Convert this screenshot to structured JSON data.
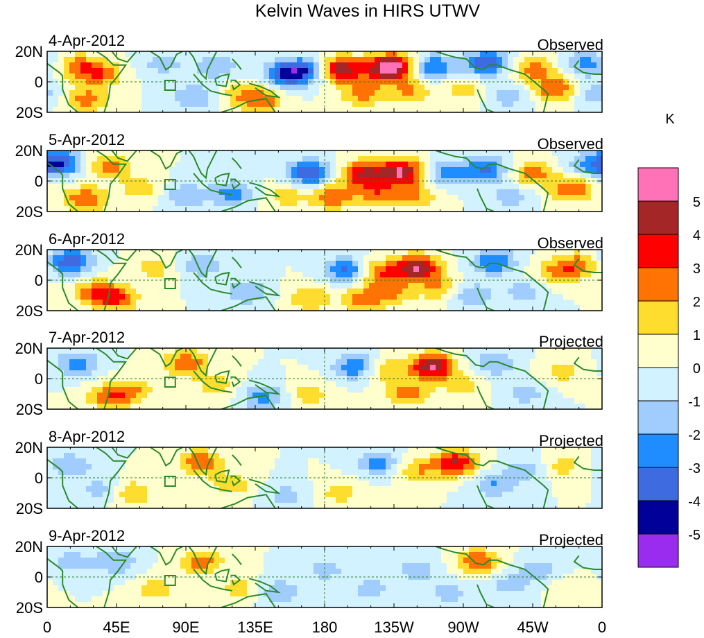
{
  "figure": {
    "title": "Kelvin Waves in HIRS UTWV"
  },
  "chart_data": {
    "type": "heatmap",
    "title": "Kelvin Waves in HIRS UTWV",
    "colorbar": {
      "unit": "K",
      "colors": [
        "#9a2cef",
        "#01019a",
        "#3f6be0",
        "#1f8dff",
        "#a0ccfe",
        "#d3f2ff",
        "#ffffce",
        "#fedd2e",
        "#ff7204",
        "#ff0000",
        "#a52626",
        "#ff72b7"
      ],
      "labels": [
        "-5",
        "-4",
        "-3",
        "-2",
        "-1",
        "0",
        "1",
        "2",
        "3",
        "4",
        "5"
      ]
    },
    "x_ticks": [
      "0",
      "45E",
      "90E",
      "135E",
      "180",
      "135W",
      "90W",
      "45W",
      "0"
    ],
    "y_ticks": [
      "20N",
      "0",
      "20S"
    ],
    "x_range_deg_east": [
      0,
      360
    ],
    "y_range_deg": [
      -20,
      20
    ],
    "panels": [
      {
        "date": "4-Apr-2012",
        "label": "Observed",
        "blobs": [
          [
            20,
            10,
            2.5
          ],
          [
            35,
            5,
            2.5
          ],
          [
            25,
            -12,
            2.5
          ],
          [
            75,
            12,
            -1.5
          ],
          [
            95,
            -10,
            -2
          ],
          [
            110,
            10,
            -2
          ],
          [
            125,
            -8,
            1.5
          ],
          [
            140,
            -12,
            2.5
          ],
          [
            155,
            5,
            -4
          ],
          [
            170,
            8,
            -3
          ],
          [
            190,
            8,
            5
          ],
          [
            205,
            -8,
            2.5
          ],
          [
            215,
            8,
            2
          ],
          [
            225,
            10,
            5
          ],
          [
            235,
            -6,
            2
          ],
          [
            250,
            10,
            -3
          ],
          [
            270,
            -5,
            1.5
          ],
          [
            285,
            12,
            -4
          ],
          [
            300,
            -10,
            -1.5
          ],
          [
            315,
            8,
            2.5
          ],
          [
            330,
            -5,
            3
          ],
          [
            350,
            12,
            -2.5
          ],
          [
            355,
            -8,
            -1.5
          ]
        ]
      },
      {
        "date": "5-Apr-2012",
        "label": "Observed",
        "blobs": [
          [
            8,
            12,
            -4
          ],
          [
            40,
            10,
            2.5
          ],
          [
            25,
            -12,
            3
          ],
          [
            60,
            -5,
            1.5
          ],
          [
            90,
            -10,
            -2
          ],
          [
            120,
            -8,
            -2.5
          ],
          [
            155,
            -10,
            1.5
          ],
          [
            170,
            5,
            -4
          ],
          [
            185,
            -10,
            3
          ],
          [
            205,
            5,
            4
          ],
          [
            215,
            -8,
            2.5
          ],
          [
            230,
            6,
            5
          ],
          [
            240,
            -10,
            2
          ],
          [
            260,
            5,
            -2.5
          ],
          [
            285,
            8,
            -3
          ],
          [
            300,
            -10,
            -1.5
          ],
          [
            315,
            5,
            2.5
          ],
          [
            340,
            -5,
            3
          ],
          [
            350,
            10,
            -2
          ]
        ]
      },
      {
        "date": "6-Apr-2012",
        "label": "Observed",
        "blobs": [
          [
            15,
            12,
            -4
          ],
          [
            30,
            -8,
            2.5
          ],
          [
            45,
            -12,
            3
          ],
          [
            70,
            8,
            1.5
          ],
          [
            100,
            10,
            -2
          ],
          [
            130,
            -8,
            -2
          ],
          [
            170,
            -12,
            2
          ],
          [
            195,
            6,
            -3.5
          ],
          [
            205,
            -12,
            2.5
          ],
          [
            215,
            5,
            3
          ],
          [
            225,
            -8,
            2
          ],
          [
            240,
            8,
            5
          ],
          [
            255,
            -5,
            2
          ],
          [
            275,
            -10,
            -2
          ],
          [
            290,
            12,
            -3
          ],
          [
            310,
            -8,
            -1.5
          ],
          [
            330,
            5,
            2
          ],
          [
            345,
            10,
            2.5
          ]
        ]
      },
      {
        "date": "7-Apr-2012",
        "label": "Projected",
        "blobs": [
          [
            20,
            10,
            -2.5
          ],
          [
            40,
            -12,
            2.5
          ],
          [
            55,
            -8,
            2
          ],
          [
            90,
            10,
            3
          ],
          [
            110,
            -5,
            1.5
          ],
          [
            140,
            -12,
            -2.5
          ],
          [
            170,
            -10,
            1.5
          ],
          [
            200,
            8,
            -3
          ],
          [
            220,
            5,
            2
          ],
          [
            235,
            -10,
            2.5
          ],
          [
            250,
            8,
            5
          ],
          [
            270,
            -5,
            1.5
          ],
          [
            290,
            10,
            -2
          ],
          [
            310,
            -10,
            -1.5
          ],
          [
            335,
            5,
            1.5
          ]
        ]
      },
      {
        "date": "8-Apr-2012",
        "label": "Projected",
        "blobs": [
          [
            15,
            8,
            -2
          ],
          [
            35,
            -8,
            -1.5
          ],
          [
            55,
            -10,
            2
          ],
          [
            100,
            10,
            3
          ],
          [
            120,
            -5,
            1.5
          ],
          [
            155,
            -12,
            -1.5
          ],
          [
            190,
            -10,
            1.5
          ],
          [
            215,
            10,
            -2.5
          ],
          [
            240,
            5,
            2
          ],
          [
            265,
            10,
            4
          ],
          [
            290,
            -5,
            -2
          ],
          [
            310,
            5,
            -1.5
          ],
          [
            335,
            8,
            1.5
          ]
        ]
      },
      {
        "date": "9-Apr-2012",
        "label": "Projected",
        "blobs": [
          [
            15,
            10,
            -1.5
          ],
          [
            45,
            10,
            -2
          ],
          [
            70,
            -8,
            1.5
          ],
          [
            100,
            10,
            2.5
          ],
          [
            125,
            -8,
            1.5
          ],
          [
            150,
            -10,
            -2
          ],
          [
            180,
            5,
            -1.5
          ],
          [
            210,
            -8,
            -1.5
          ],
          [
            240,
            5,
            -1.5
          ],
          [
            260,
            -10,
            -1.5
          ],
          [
            280,
            10,
            3
          ],
          [
            300,
            -5,
            -1.5
          ],
          [
            320,
            5,
            -1.5
          ],
          [
            340,
            -8,
            1
          ]
        ]
      }
    ]
  }
}
